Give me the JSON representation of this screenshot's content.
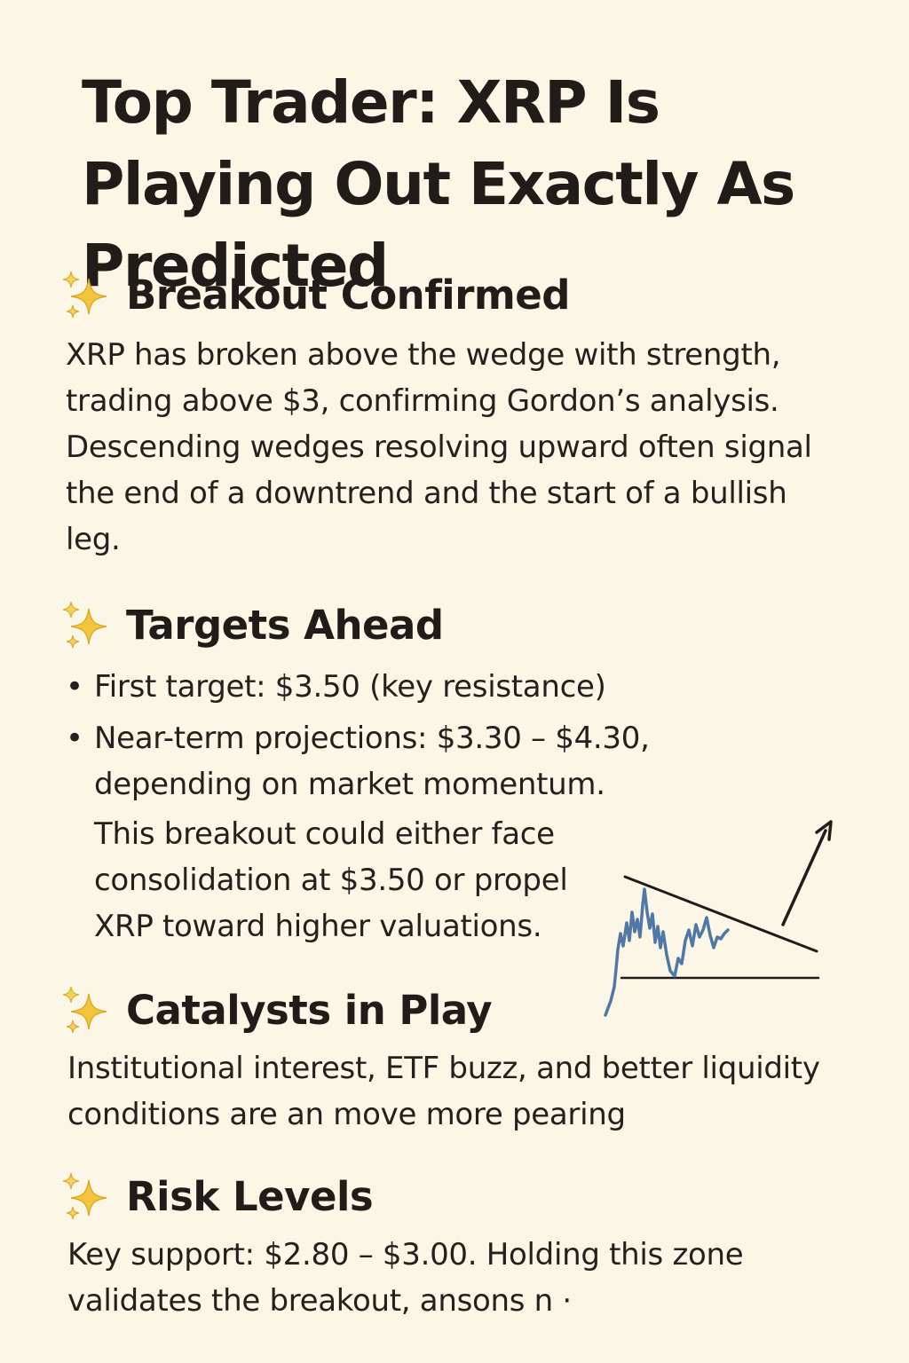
{
  "title": "Top Trader: XRP Is Playing Out Exactly As Predicted",
  "sections": [
    {
      "heading": "Breakout Confirmed",
      "icon": "sparkles-icon",
      "body": "XRP has broken above the wedge with strength, trading above $3, confirming Gordon’s analysis. Descending wedges resolving upward often signal the end of a downtrend and the start of a bullish leg."
    },
    {
      "heading": "Targets Ahead",
      "icon": "sparkles-icon",
      "bullets": [
        "First target: $3.50 (key resistance)",
        "Near-term projections: $3.30 – $4.30, depending on market momentum."
      ],
      "note": "This breakout could either face consolidation at $3.50 or propel XRP toward higher valuations."
    },
    {
      "heading": "Catalysts in Play",
      "icon": "sparkles-icon",
      "body": "Institutional interest, ETF buzz, and better liquidity conditions are an move more pearing"
    },
    {
      "heading": "Risk Levels",
      "icon": "sparkles-icon",
      "body": "Key support: $2.80 – $3.00. Holding this zone validates the breakout, ansons n ·"
    }
  ],
  "colors": {
    "background": "#fcf6e7",
    "text": "#201d19",
    "sparkle": "#f2c53d",
    "chart_line": "#4f78a6",
    "wedge_line": "#1f1d1a"
  },
  "illustration": {
    "name": "descending-wedge-breakout",
    "description_icon": "wedge-breakout-chart"
  }
}
